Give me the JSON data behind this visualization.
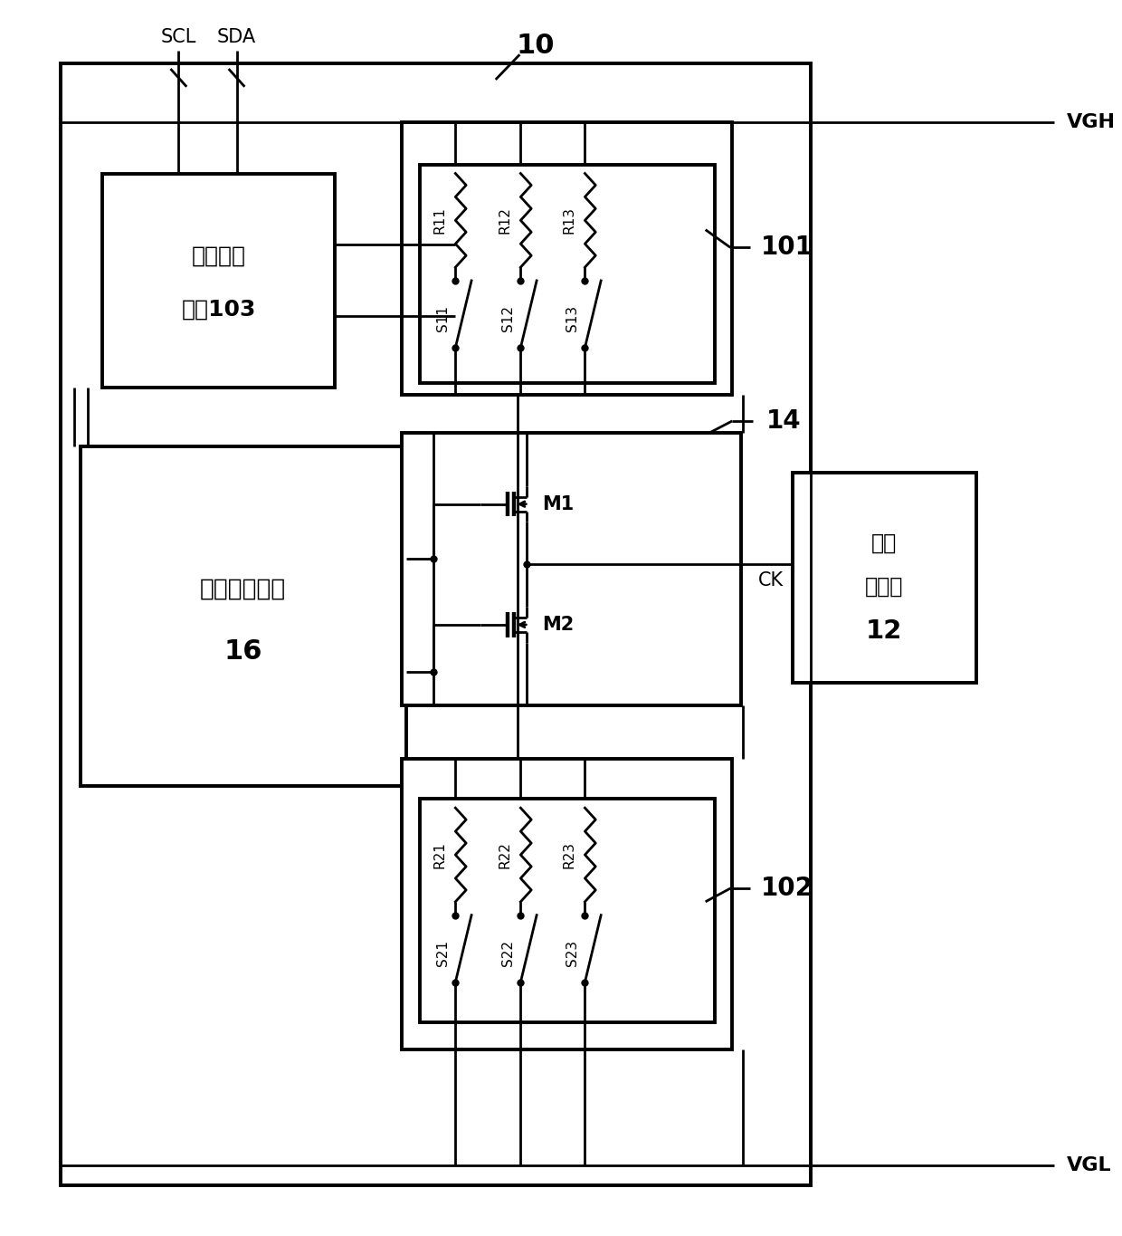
{
  "bg_color": "#ffffff",
  "line_color": "#000000",
  "SCL_label": "SCL",
  "SDA_label": "SDA",
  "VGH_label": "VGH",
  "VGL_label": "VGL",
  "CK_label": "CK",
  "ref10": "10",
  "ref101": "101",
  "ref102": "102",
  "ref14": "14",
  "ref12": "12",
  "box103_line1": "总线控制",
  "box103_line2": "模块103",
  "box16_line1": "开关控制模块",
  "box16_line2": "16",
  "box12_line1": "电平",
  "box12_line2": "转换器",
  "box12_line3": "12",
  "M1_label": "M1",
  "M2_label": "M2",
  "res_top": [
    "R11",
    "R12",
    "R13"
  ],
  "sw_top": [
    "S11",
    "S12",
    "S13"
  ],
  "res_bot": [
    "R21",
    "R22",
    "R23"
  ],
  "sw_bot": [
    "S21",
    "S22",
    "S23"
  ]
}
